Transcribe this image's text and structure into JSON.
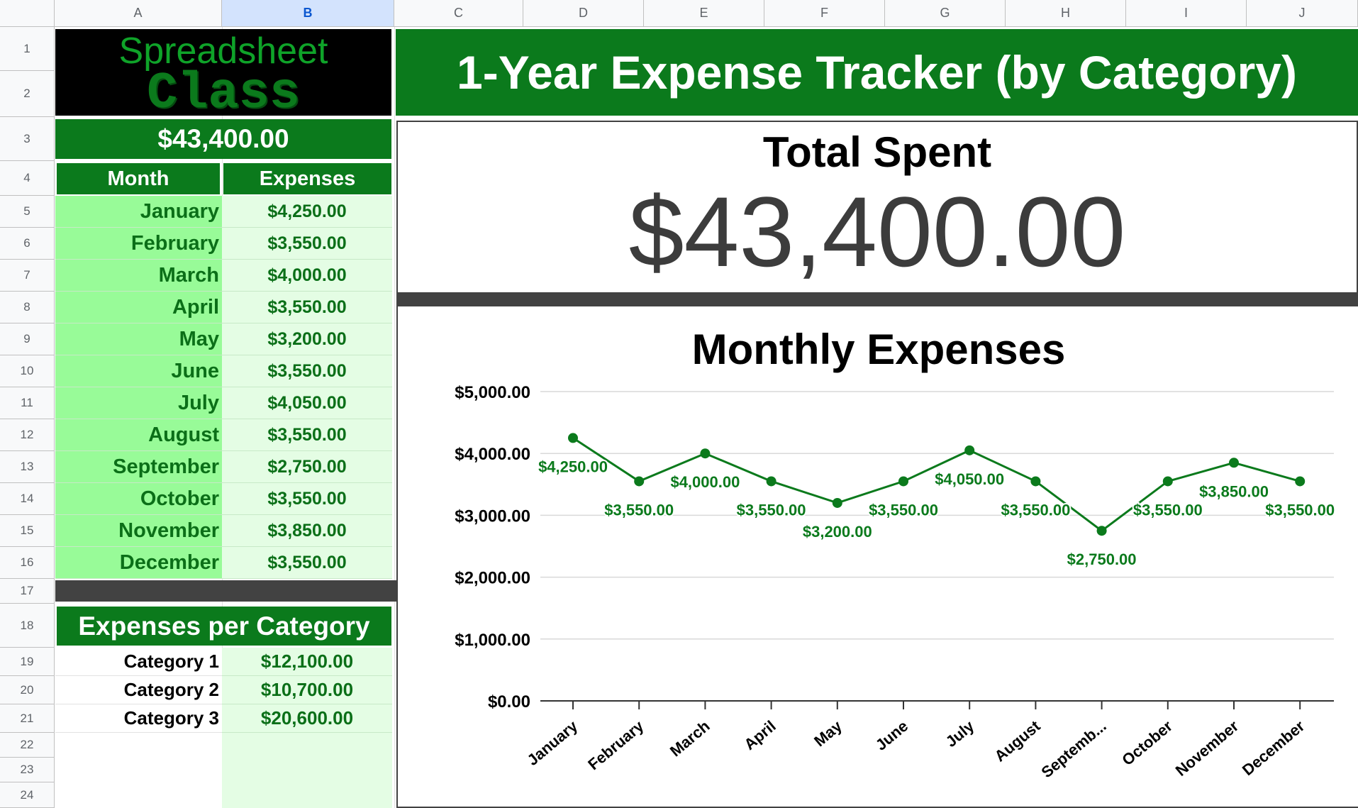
{
  "columns": [
    "A",
    "B",
    "C",
    "D",
    "E",
    "F",
    "G",
    "H",
    "I",
    "J"
  ],
  "rows": [
    "1",
    "2",
    "3",
    "4",
    "5",
    "6",
    "7",
    "8",
    "9",
    "10",
    "11",
    "12",
    "13",
    "14",
    "15",
    "16",
    "17",
    "18",
    "19",
    "20",
    "21",
    "22",
    "23",
    "24"
  ],
  "logo": {
    "line1": "Spreadsheet",
    "line2": "Class"
  },
  "title": "1-Year Expense Tracker (by Category)",
  "total_cell": "$43,400.00",
  "table": {
    "headers": {
      "month": "Month",
      "expenses": "Expenses"
    },
    "months": [
      {
        "month": "January",
        "amount": "$4,250.00"
      },
      {
        "month": "February",
        "amount": "$3,550.00"
      },
      {
        "month": "March",
        "amount": "$4,000.00"
      },
      {
        "month": "April",
        "amount": "$3,550.00"
      },
      {
        "month": "May",
        "amount": "$3,200.00"
      },
      {
        "month": "June",
        "amount": "$3,550.00"
      },
      {
        "month": "July",
        "amount": "$4,050.00"
      },
      {
        "month": "August",
        "amount": "$3,550.00"
      },
      {
        "month": "September",
        "amount": "$2,750.00"
      },
      {
        "month": "October",
        "amount": "$3,550.00"
      },
      {
        "month": "November",
        "amount": "$3,850.00"
      },
      {
        "month": "December",
        "amount": "$3,550.00"
      }
    ]
  },
  "categories": {
    "title": "Expenses per Category",
    "items": [
      {
        "name": "Category 1",
        "amount": "$12,100.00"
      },
      {
        "name": "Category 2",
        "amount": "$10,700.00"
      },
      {
        "name": "Category 3",
        "amount": "$20,600.00"
      }
    ]
  },
  "scorecard": {
    "label": "Total Spent",
    "value": "$43,400.00"
  },
  "colors": {
    "brand_green": "#0b7a1c",
    "line_green": "#0b7a1c",
    "light_green": "#98fb98",
    "pale_green": "#e4fde4",
    "dark_bar": "#424242"
  },
  "chart_data": {
    "type": "line",
    "title": "Monthly Expenses",
    "categories": [
      "January",
      "February",
      "March",
      "April",
      "May",
      "June",
      "July",
      "August",
      "Septemb...",
      "October",
      "November",
      "December"
    ],
    "values": [
      4250,
      3550,
      4000,
      3550,
      3200,
      3550,
      4050,
      3550,
      2750,
      3550,
      3850,
      3550
    ],
    "data_labels": [
      "$4,250.00",
      "$3,550.00",
      "$4,000.00",
      "$3,550.00",
      "$3,200.00",
      "$3,550.00",
      "$4,050.00",
      "$3,550.00",
      "$2,750.00",
      "$3,550.00",
      "$3,850.00",
      "$3,550.00"
    ],
    "ylim": [
      0,
      5000
    ],
    "yticks": [
      0,
      1000,
      2000,
      3000,
      4000,
      5000
    ],
    "ytick_labels": [
      "$0.00",
      "$1,000.00",
      "$2,000.00",
      "$3,000.00",
      "$4,000.00",
      "$5,000.00"
    ],
    "grid": true,
    "legend": "none"
  }
}
